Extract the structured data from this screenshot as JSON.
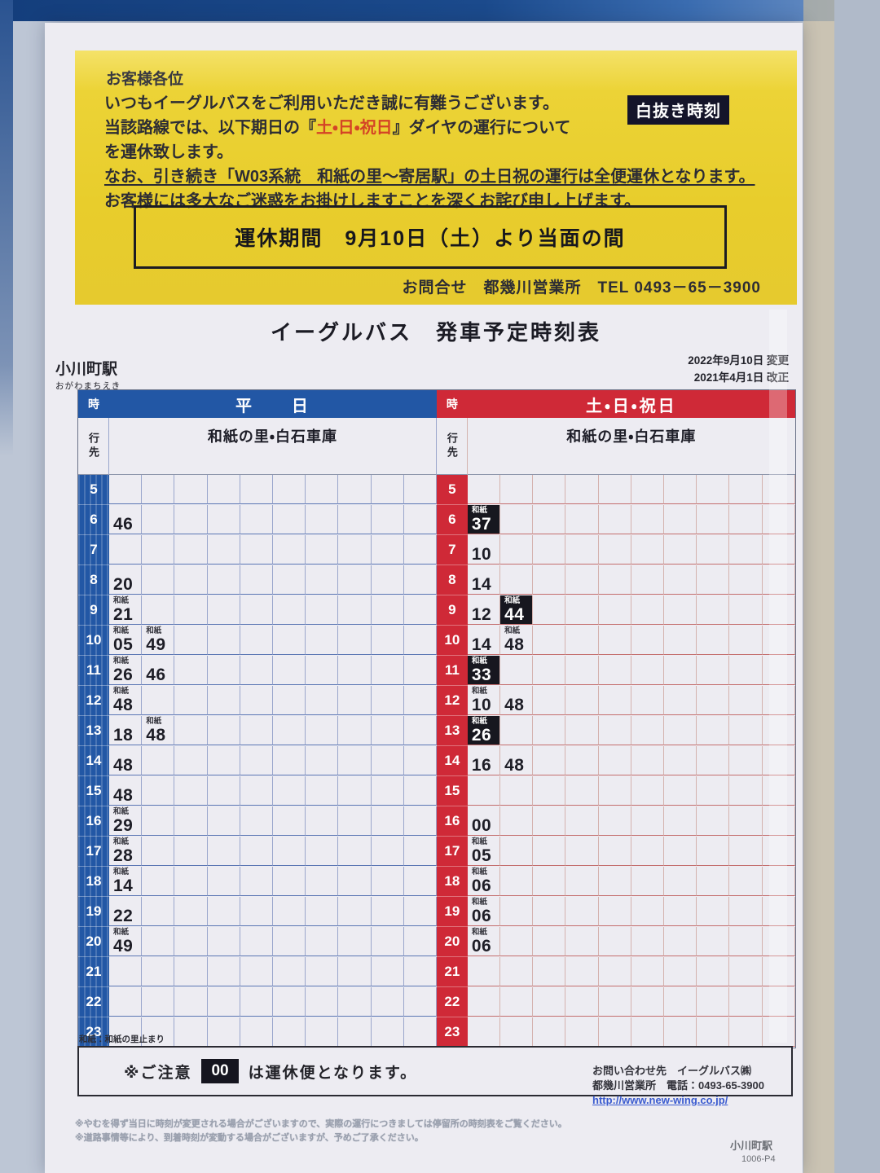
{
  "notice": {
    "salutation": "お客様各位",
    "line1": "いつもイーグルバスをご利用いただき誠に有難うございます。",
    "line2_pre": "当該路線では、以下期日の『",
    "line2_red": "土・日・祝日",
    "line2_post": "』ダイヤの運行について",
    "badge": "白抜き時刻",
    "line3": "を運休致します。",
    "line4": "なお、引き続き「W03系統　和紙の里～寄居駅」の土日祝の運行は全便運休となります。",
    "line5": "お客様には多大なご迷惑をお掛けしますことを深くお詫び申し上げます。",
    "period_box": "運休期間　9月10日（土）より当面の間",
    "contact": "お問合せ　都幾川営業所　TEL 0493－65－3900"
  },
  "title": "イーグルバス　発車予定時刻表",
  "station": {
    "name": "小川町駅",
    "kana": "おがわまちえき"
  },
  "revisions": {
    "line1": "2022年9月10日 変更",
    "line2": "2021年4月1日 改正"
  },
  "timetable": {
    "hour_header": "時",
    "dest_header": "行先",
    "hours": [
      5,
      6,
      7,
      8,
      9,
      10,
      11,
      12,
      13,
      14,
      15,
      16,
      17,
      18,
      19,
      20,
      21,
      22,
      23
    ],
    "weekday": {
      "label": "平　　日",
      "destination": "和紙の里・白石車庫",
      "rows": {
        "5": [],
        "6": [
          {
            "t": "46"
          }
        ],
        "7": [],
        "8": [
          {
            "t": "20"
          }
        ],
        "9": [
          {
            "t": "21",
            "l": "和紙"
          }
        ],
        "10": [
          {
            "t": "05",
            "l": "和紙"
          },
          {
            "t": "49",
            "l": "和紙"
          }
        ],
        "11": [
          {
            "t": "26",
            "l": "和紙"
          },
          {
            "t": "46"
          }
        ],
        "12": [
          {
            "t": "48",
            "l": "和紙"
          }
        ],
        "13": [
          {
            "t": "18"
          },
          {
            "t": "48",
            "l": "和紙"
          }
        ],
        "14": [
          {
            "t": "48"
          }
        ],
        "15": [
          {
            "t": "48"
          }
        ],
        "16": [
          {
            "t": "29",
            "l": "和紙"
          }
        ],
        "17": [
          {
            "t": "28",
            "l": "和紙"
          }
        ],
        "18": [
          {
            "t": "14",
            "l": "和紙"
          }
        ],
        "19": [
          {
            "t": "22"
          }
        ],
        "20": [
          {
            "t": "49",
            "l": "和紙"
          }
        ],
        "21": [],
        "22": [],
        "23": []
      }
    },
    "holiday": {
      "label": "土・日・祝日",
      "destination": "和紙の里・白石車庫",
      "rows": {
        "5": [],
        "6": [
          {
            "t": "37",
            "l": "和紙",
            "inv": true
          }
        ],
        "7": [
          {
            "t": "10"
          }
        ],
        "8": [
          {
            "t": "14"
          }
        ],
        "9": [
          {
            "t": "12"
          },
          {
            "t": "44",
            "l": "和紙",
            "inv": true
          }
        ],
        "10": [
          {
            "t": "14"
          },
          {
            "t": "48",
            "l": "和紙"
          }
        ],
        "11": [
          {
            "t": "33",
            "l": "和紙",
            "inv": true
          }
        ],
        "12": [
          {
            "t": "10",
            "l": "和紙"
          },
          {
            "t": "48"
          }
        ],
        "13": [
          {
            "t": "26",
            "l": "和紙",
            "inv": true
          }
        ],
        "14": [
          {
            "t": "16"
          },
          {
            "t": "48"
          }
        ],
        "15": [],
        "16": [
          {
            "t": "00"
          }
        ],
        "17": [
          {
            "t": "05",
            "l": "和紙"
          }
        ],
        "18": [
          {
            "t": "06",
            "l": "和紙"
          }
        ],
        "19": [
          {
            "t": "06",
            "l": "和紙"
          }
        ],
        "20": [
          {
            "t": "06",
            "l": "和紙"
          }
        ],
        "21": [],
        "22": [],
        "23": []
      }
    }
  },
  "footnote": "和紙：和紙の里止まり",
  "caution": {
    "prefix": "※ご注意",
    "badge": "00",
    "suffix": "は運休便となります。"
  },
  "inquiry": {
    "line1": "お問い合わせ先　イーグルバス㈱",
    "line2": "都幾川営業所　電話：0493-65-3900",
    "url": "http://www.new-wing.co.jp/"
  },
  "fine_print": {
    "line1": "※やむを得ず当日に時刻が変更される場合がございますので、実際の運行につきましては停留所の時刻表をご覧ください。",
    "line2": "※道路事情等により、到着時刻が変動する場合がございますが、予めご了承ください。"
  },
  "corner": {
    "station": "小川町駅",
    "code": "1006-P4"
  }
}
